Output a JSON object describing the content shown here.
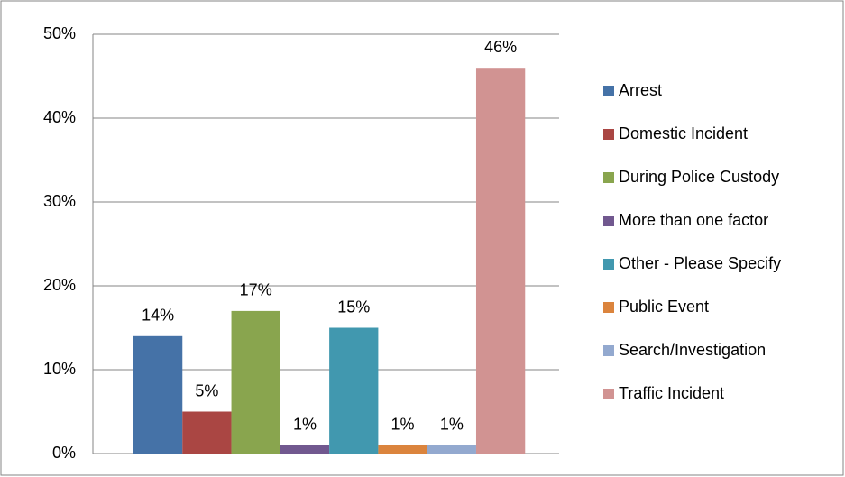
{
  "chart_data": {
    "type": "bar",
    "categories": [
      null
    ],
    "series": [
      {
        "name": "Arrest",
        "color": "#4572a7",
        "values": [
          14
        ],
        "value_labels": [
          "14%"
        ]
      },
      {
        "name": "Domestic Incident",
        "color": "#aa4643",
        "values": [
          5
        ],
        "value_labels": [
          "5%"
        ]
      },
      {
        "name": "During Police Custody",
        "color": "#89a54e",
        "values": [
          17
        ],
        "value_labels": [
          "17%"
        ]
      },
      {
        "name": "More than one factor",
        "color": "#71588f",
        "values": [
          1
        ],
        "value_labels": [
          "1%"
        ]
      },
      {
        "name": "Other - Please Specify",
        "color": "#4198af",
        "values": [
          15
        ],
        "value_labels": [
          "15%"
        ]
      },
      {
        "name": "Public Event",
        "color": "#db843d",
        "values": [
          1
        ],
        "value_labels": [
          "1%"
        ]
      },
      {
        "name": "Search/Investigation",
        "color": "#93a9cf",
        "values": [
          1
        ],
        "value_labels": [
          "1%"
        ]
      },
      {
        "name": "Traffic Incident",
        "color": "#d19392",
        "values": [
          46
        ],
        "value_labels": [
          "46%"
        ]
      }
    ],
    "ylim": [
      0,
      50
    ],
    "yticks": [
      {
        "value": 0,
        "label": "0%"
      },
      {
        "value": 10,
        "label": "10%"
      },
      {
        "value": 20,
        "label": "20%"
      },
      {
        "value": 30,
        "label": "30%"
      },
      {
        "value": 40,
        "label": "40%"
      },
      {
        "value": 50,
        "label": "50%"
      }
    ],
    "grid": true,
    "legend": "right"
  }
}
